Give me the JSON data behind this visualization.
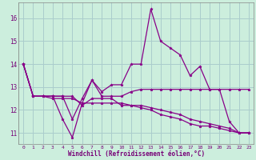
{
  "xlabel": "Windchill (Refroidissement éolien,°C)",
  "background_color": "#cceedd",
  "grid_color": "#aacccc",
  "line_color": "#880088",
  "xlim": [
    -0.5,
    23.5
  ],
  "ylim": [
    10.5,
    16.7
  ],
  "yticks": [
    11,
    12,
    13,
    14,
    15,
    16
  ],
  "xticks": [
    0,
    1,
    2,
    3,
    4,
    5,
    6,
    7,
    8,
    9,
    10,
    11,
    12,
    13,
    14,
    15,
    16,
    17,
    18,
    19,
    20,
    21,
    22,
    23
  ],
  "series": [
    [
      14.0,
      12.6,
      12.6,
      12.6,
      12.6,
      11.6,
      12.5,
      13.3,
      12.8,
      13.1,
      13.1,
      14.0,
      14.0,
      16.4,
      15.0,
      14.7,
      14.4,
      13.5,
      13.9,
      12.9,
      12.9,
      11.5,
      11.0,
      11.0
    ],
    [
      14.0,
      12.6,
      12.6,
      12.6,
      11.6,
      10.8,
      12.3,
      13.3,
      12.6,
      12.6,
      12.6,
      12.8,
      12.9,
      12.9,
      12.9,
      12.9,
      12.9,
      12.9,
      12.9,
      12.9,
      12.9,
      12.9,
      12.9,
      12.9
    ],
    [
      14.0,
      12.6,
      12.6,
      12.6,
      12.6,
      12.6,
      12.2,
      12.5,
      12.5,
      12.5,
      12.2,
      12.2,
      12.1,
      12.0,
      11.8,
      11.7,
      11.6,
      11.4,
      11.3,
      11.3,
      11.2,
      11.1,
      11.0,
      11.0
    ],
    [
      14.0,
      12.6,
      12.6,
      12.5,
      12.5,
      12.5,
      12.3,
      12.3,
      12.3,
      12.3,
      12.3,
      12.2,
      12.2,
      12.1,
      12.0,
      11.9,
      11.8,
      11.6,
      11.5,
      11.4,
      11.3,
      11.2,
      11.0,
      11.0
    ]
  ]
}
